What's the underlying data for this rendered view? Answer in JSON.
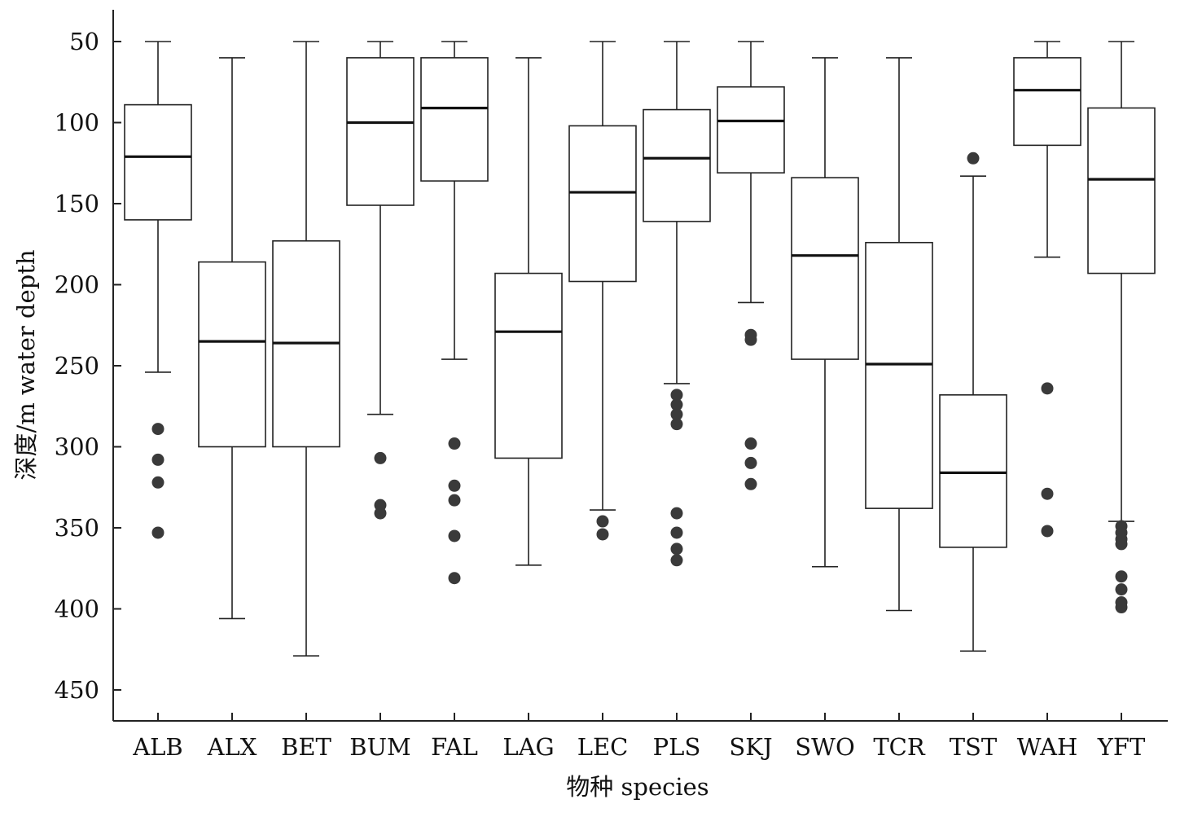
{
  "chart_data": {
    "type": "box",
    "xlabel": "物种 species",
    "ylabel": "深度/m water depth",
    "y_reversed": true,
    "ylim": [
      31,
      470
    ],
    "yticks": [
      50,
      100,
      150,
      200,
      250,
      300,
      350,
      400,
      450
    ],
    "grid": false,
    "legend": "none",
    "box_color": "#222222",
    "outlier_color": "#3a3a3a",
    "boxes": [
      {
        "category": "ALB",
        "whisker_low": 50,
        "q1": 89,
        "median": 121,
        "q3": 160,
        "whisker_high": 254,
        "outliers": [
          289,
          308,
          322,
          353
        ]
      },
      {
        "category": "ALX",
        "whisker_low": 60,
        "q1": 186,
        "median": 235,
        "q3": 300,
        "whisker_high": 406,
        "outliers": []
      },
      {
        "category": "BET",
        "whisker_low": 50,
        "q1": 173,
        "median": 236,
        "q3": 300,
        "whisker_high": 429,
        "outliers": []
      },
      {
        "category": "BUM",
        "whisker_low": 50,
        "q1": 60,
        "median": 100,
        "q3": 151,
        "whisker_high": 280,
        "outliers": [
          307,
          336,
          341
        ]
      },
      {
        "category": "FAL",
        "whisker_low": 50,
        "q1": 60,
        "median": 91,
        "q3": 136,
        "whisker_high": 246,
        "outliers": [
          298,
          324,
          333,
          355,
          381
        ]
      },
      {
        "category": "LAG",
        "whisker_low": 60,
        "q1": 193,
        "median": 229,
        "q3": 307,
        "whisker_high": 373,
        "outliers": []
      },
      {
        "category": "LEC",
        "whisker_low": 50,
        "q1": 102,
        "median": 143,
        "q3": 198,
        "whisker_high": 339,
        "outliers": [
          346,
          354
        ]
      },
      {
        "category": "PLS",
        "whisker_low": 50,
        "q1": 92,
        "median": 122,
        "q3": 161,
        "whisker_high": 261,
        "outliers": [
          268,
          274,
          280,
          286,
          341,
          353,
          363,
          370
        ]
      },
      {
        "category": "SKJ",
        "whisker_low": 50,
        "q1": 78,
        "median": 99,
        "q3": 131,
        "whisker_high": 211,
        "outliers": [
          231,
          234,
          298,
          310,
          323
        ]
      },
      {
        "category": "SWO",
        "whisker_low": 60,
        "q1": 134,
        "median": 182,
        "q3": 246,
        "whisker_high": 374,
        "outliers": []
      },
      {
        "category": "TCR",
        "whisker_low": 60,
        "q1": 174,
        "median": 249,
        "q3": 338,
        "whisker_high": 401,
        "outliers": []
      },
      {
        "category": "TST",
        "whisker_low": 133,
        "q1": 268,
        "median": 316,
        "q3": 362,
        "whisker_high": 426,
        "outliers": [
          122
        ]
      },
      {
        "category": "WAH",
        "whisker_low": 50,
        "q1": 60,
        "median": 80,
        "q3": 114,
        "whisker_high": 183,
        "outliers": [
          264,
          329,
          352
        ]
      },
      {
        "category": "YFT",
        "whisker_low": 50,
        "q1": 91,
        "median": 135,
        "q3": 193,
        "whisker_high": 346,
        "outliers": [
          349,
          353,
          357,
          360,
          380,
          388,
          396,
          399
        ]
      }
    ]
  }
}
